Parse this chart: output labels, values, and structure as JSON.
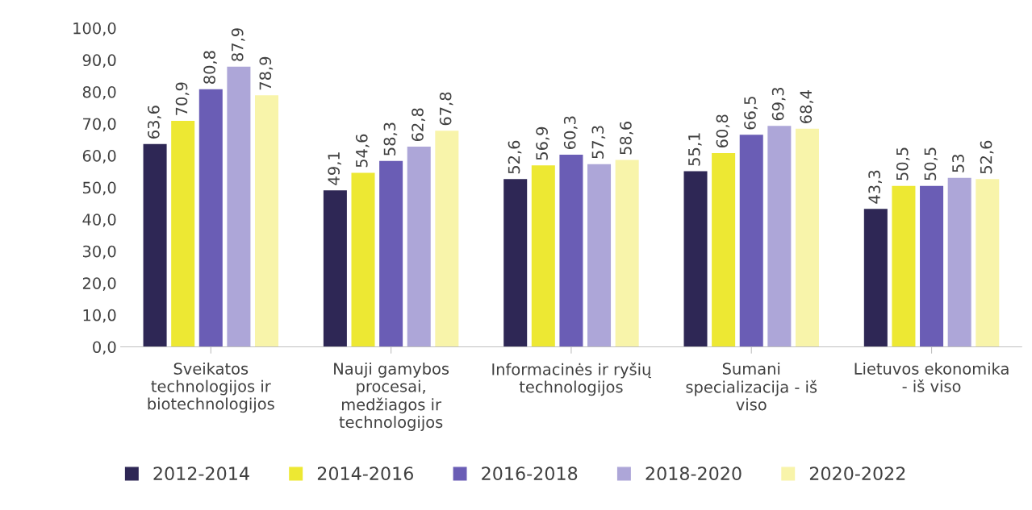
{
  "chart_data": {
    "type": "bar",
    "categories": [
      "Sveikatos technologijos ir biotechnologijos",
      "Nauji gamybos procesai, medžiagos ir technologijos",
      "Informacinės ir ryšių technologijos",
      "Sumani specializacija - iš viso",
      "Lietuvos ekonomika - iš viso"
    ],
    "series": [
      {
        "name": "2012-2014",
        "color": "#2e2755",
        "values": [
          63.6,
          49.1,
          52.6,
          55.1,
          43.3
        ],
        "value_labels": [
          "63,6",
          "49,1",
          "52,6",
          "55,1",
          "43,3"
        ]
      },
      {
        "name": "2014-2016",
        "color": "#ede833",
        "values": [
          70.9,
          54.6,
          56.9,
          60.8,
          50.5
        ],
        "value_labels": [
          "70,9",
          "54,6",
          "56,9",
          "60,8",
          "50,5"
        ]
      },
      {
        "name": "2016-2018",
        "color": "#6a5db5",
        "values": [
          80.8,
          58.3,
          60.3,
          66.5,
          50.5
        ],
        "value_labels": [
          "80,8",
          "58,3",
          "60,3",
          "66,5",
          "50,5"
        ]
      },
      {
        "name": "2018-2020",
        "color": "#ada6d8",
        "values": [
          87.9,
          62.8,
          57.3,
          69.3,
          53
        ],
        "value_labels": [
          "87,9",
          "62,8",
          "57,3",
          "69,3",
          "53"
        ]
      },
      {
        "name": "2020-2022",
        "color": "#f8f4aa",
        "values": [
          78.9,
          67.8,
          58.6,
          68.4,
          52.6
        ],
        "value_labels": [
          "78,9",
          "67,8",
          "58,6",
          "68,4",
          "52,6"
        ]
      }
    ],
    "ylim": [
      0,
      100
    ],
    "yticks": [
      {
        "value": 0,
        "label": "0,0"
      },
      {
        "value": 10,
        "label": "10,0"
      },
      {
        "value": 20,
        "label": "20,0"
      },
      {
        "value": 30,
        "label": "30,0"
      },
      {
        "value": 40,
        "label": "40,0"
      },
      {
        "value": 50,
        "label": "50,0"
      },
      {
        "value": 60,
        "label": "60,0"
      },
      {
        "value": 70,
        "label": "70,0"
      },
      {
        "value": 80,
        "label": "80,0"
      },
      {
        "value": 90,
        "label": "90,0"
      },
      {
        "value": 100,
        "label": "100,0"
      }
    ],
    "grid": false,
    "legend": "bottom"
  }
}
